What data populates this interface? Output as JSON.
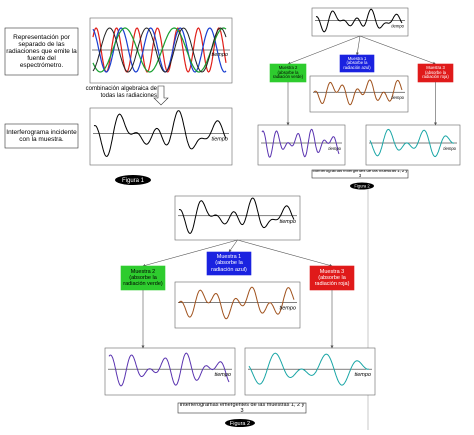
{
  "figure_1": {
    "source_label": "Representación por separado de las radiaciones que emite la fuente del espectrómetro.",
    "source_time_label": "tiempo",
    "combination_label": "combinación algebraica de todas las radiaciones",
    "interferogram_label": "Interferograma incidente con la muestra.",
    "interferogram_time_label": "tiempo",
    "caption": "Figura 1"
  },
  "figure_2_small": {
    "samples": [
      "Muestra 2 (absorbe la radiación verde)",
      "Muestra 1 (absorbe la radiación azul)",
      "Muestra 3 (absorbe la radiación roja)"
    ],
    "time_labels": [
      "tiempo",
      "tiempo",
      "tiempo",
      "tiempo"
    ],
    "caption_box": "Interferogramas emergentes de las muestras 1, 2 y 3",
    "caption": "Figura 2"
  },
  "figure_2_large": {
    "samples": [
      "Muestra 2 (absorbe la radiación verde)",
      "Muestra 1 (absorbe la radiación azul)",
      "Muestra 3 (absorbe la radiación roja)"
    ],
    "time_labels": [
      "tiempo",
      "tiempo",
      "tiempo",
      "tiempo"
    ],
    "caption_box": "Interferogramas emergentes de las muestras 1, 2 y 3",
    "caption": "Figura 2"
  }
}
